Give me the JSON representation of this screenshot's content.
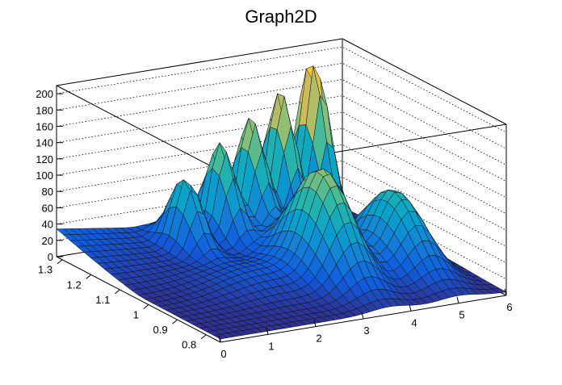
{
  "chart_data": {
    "type": "surface",
    "title": "Graph2D",
    "xlim": [
      0,
      6
    ],
    "ylim": [
      0.75,
      1.32
    ],
    "zlim": [
      0,
      210
    ],
    "x_ticks": [
      "0",
      "1",
      "2",
      "3",
      "4",
      "5",
      "6"
    ],
    "y_ticks": [
      "0.8",
      "0.9",
      "1",
      "1.1",
      "1.2",
      "1.3"
    ],
    "z_ticks": [
      "0",
      "20",
      "40",
      "60",
      "80",
      "100",
      "120",
      "140",
      "160",
      "180",
      "200"
    ],
    "grid": true,
    "palette": [
      "#352a87",
      "#0f5cdd",
      "#1481d6",
      "#06a4ca",
      "#2eb7a4",
      "#87bf77",
      "#d1bb59",
      "#fec832",
      "#f9fb0e"
    ],
    "peaks": [
      {
        "x": 5.15,
        "y": 1.28,
        "z": 198
      },
      {
        "x": 4.35,
        "y": 1.26,
        "z": 168
      },
      {
        "x": 3.6,
        "y": 1.24,
        "z": 145
      },
      {
        "x": 2.85,
        "y": 1.22,
        "z": 122
      },
      {
        "x": 2.0,
        "y": 1.2,
        "z": 88
      },
      {
        "x": 3.55,
        "y": 0.98,
        "z": 128
      },
      {
        "x": 5.0,
        "y": 0.97,
        "z": 94
      }
    ]
  }
}
